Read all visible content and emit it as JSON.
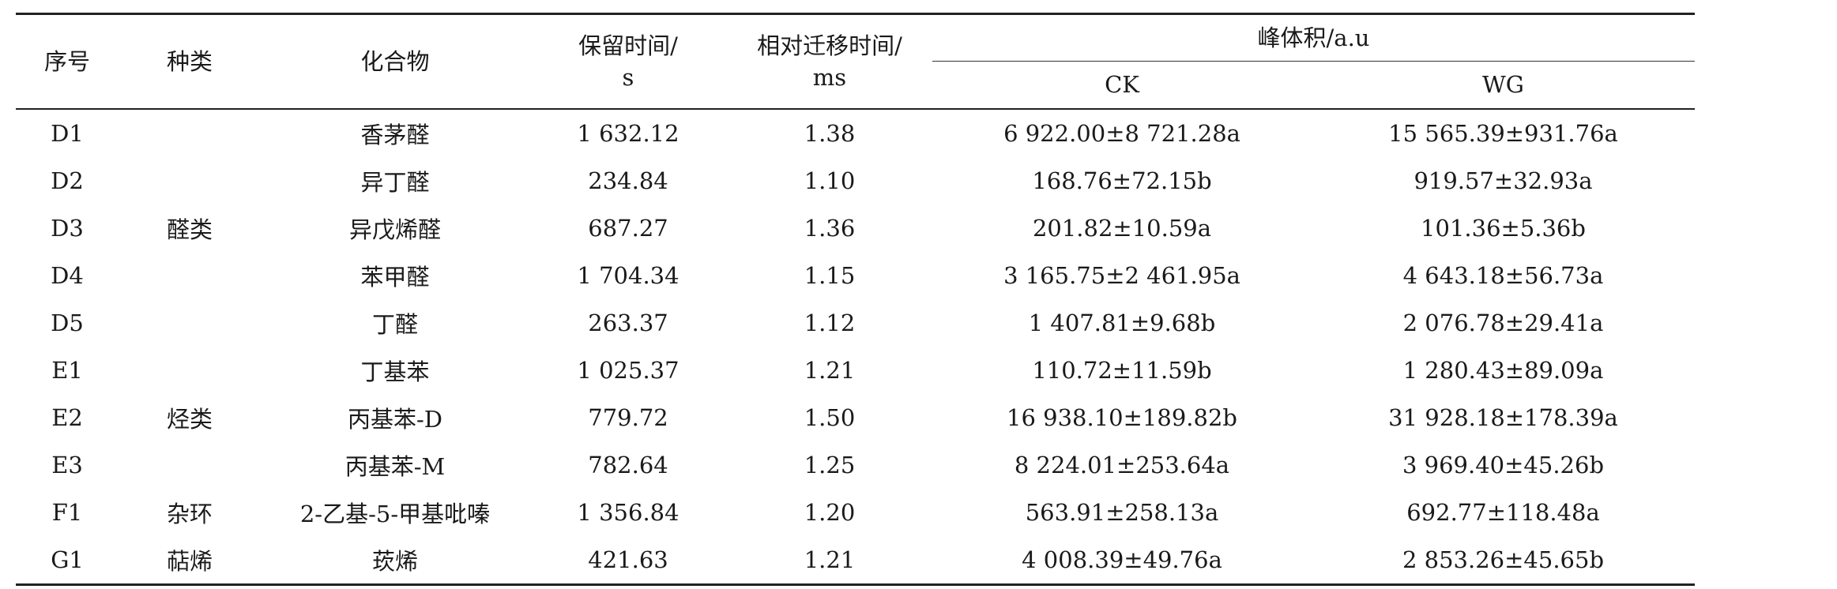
{
  "table": {
    "headers": {
      "index": "序号",
      "category": "种类",
      "compound": "化合物",
      "retention_line1": "保留时间/",
      "retention_line2": "s",
      "migration_line1": "相对迁移时间/",
      "migration_line2": "ms",
      "peak_volume": "峰体积/a.u",
      "ck": "CK",
      "wg": "WG"
    },
    "groups": [
      {
        "category": "醛类",
        "rows": [
          {
            "id": "D1",
            "compound": "香茅醛",
            "retention": "1 632.12",
            "migration": "1.38",
            "ck": "6 922.00±8 721.28a",
            "wg": "15 565.39±931.76a"
          },
          {
            "id": "D2",
            "compound": "异丁醛",
            "retention": "234.84",
            "migration": "1.10",
            "ck": "168.76±72.15b",
            "wg": "919.57±32.93a"
          },
          {
            "id": "D3",
            "compound": "异戊烯醛",
            "retention": "687.27",
            "migration": "1.36",
            "ck": "201.82±10.59a",
            "wg": "101.36±5.36b"
          },
          {
            "id": "D4",
            "compound": "苯甲醛",
            "retention": "1 704.34",
            "migration": "1.15",
            "ck": "3 165.75±2 461.95a",
            "wg": "4 643.18±56.73a"
          },
          {
            "id": "D5",
            "compound": "丁醛",
            "retention": "263.37",
            "migration": "1.12",
            "ck": "1 407.81±9.68b",
            "wg": "2 076.78±29.41a"
          }
        ]
      },
      {
        "category": "烃类",
        "rows": [
          {
            "id": "E1",
            "compound": "丁基苯",
            "retention": "1 025.37",
            "migration": "1.21",
            "ck": "110.72±11.59b",
            "wg": "1 280.43±89.09a"
          },
          {
            "id": "E2",
            "compound": "丙基苯-D",
            "retention": "779.72",
            "migration": "1.50",
            "ck": "16 938.10±189.82b",
            "wg": "31 928.18±178.39a"
          },
          {
            "id": "E3",
            "compound": "丙基苯-M",
            "retention": "782.64",
            "migration": "1.25",
            "ck": "8 224.01±253.64a",
            "wg": "3 969.40±45.26b"
          }
        ]
      },
      {
        "category": "杂环",
        "rows": [
          {
            "id": "F1",
            "compound": "2-乙基-5-甲基吡嗪",
            "retention": "1 356.84",
            "migration": "1.20",
            "ck": "563.91±258.13a",
            "wg": "692.77±118.48a"
          }
        ]
      },
      {
        "category": "萜烯",
        "rows": [
          {
            "id": "G1",
            "compound": "莰烯",
            "retention": "421.63",
            "migration": "1.21",
            "ck": "4 008.39±49.76a",
            "wg": "2 853.26±45.65b"
          }
        ]
      }
    ]
  }
}
